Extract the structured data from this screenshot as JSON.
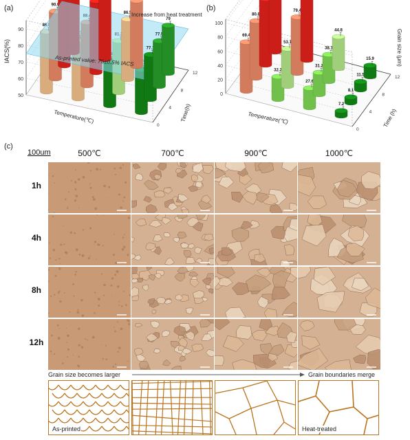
{
  "panel_a": {
    "label": "(a)",
    "ylabel": "IACS(%)",
    "xlabel": "Temperature(℃)",
    "zlabel": "Time(h)",
    "y_ticks": [
      "50",
      "60",
      "70",
      "80",
      "90"
    ],
    "x_ticks": [
      "1000",
      "900",
      "700",
      "500"
    ],
    "z_ticks": [
      "0",
      "4",
      "8",
      "12"
    ],
    "annotation_top": "Increase from heat treatment",
    "plane_label": "As-printed value: 75±0.5% IACS"
  },
  "panel_b": {
    "label": "(b)",
    "ylabel": "Grain size (μm)",
    "xlabel": "Temperature(℃)",
    "zlabel": "Time (h)",
    "y_ticks": [
      "0",
      "20",
      "40",
      "60",
      "80",
      "100"
    ],
    "x_ticks": [
      "1000",
      "900",
      "700",
      "500"
    ],
    "z_ticks": [
      "0",
      "4",
      "8",
      "12"
    ]
  },
  "chart_data": [
    {
      "type": "bar",
      "title": "",
      "xlabel": "Temperature(℃)",
      "ylabel": "IACS(%)",
      "zlabel": "Time(h)",
      "categories": [
        "1000",
        "900",
        "700",
        "500"
      ],
      "series": [
        {
          "name": "1h",
          "values": [
            86.5,
            85.7,
            77.2,
            76.1
          ]
        },
        {
          "name": "4h",
          "values": [
            90.9,
            88.4,
            81.3,
            77.1
          ]
        },
        {
          "name": "8h",
          "values": [
            95.6,
            93.5,
            86.5,
            77.5
          ]
        },
        {
          "name": "12h",
          "values": [
            94,
            95.7,
            89.8,
            79
          ]
        }
      ],
      "ylim": [
        50,
        95
      ],
      "reference_value": 75
    },
    {
      "type": "bar",
      "title": "",
      "xlabel": "Temperature(℃)",
      "ylabel": "Grain size (μm)",
      "zlabel": "Time (h)",
      "categories": [
        "1000",
        "900",
        "700",
        "500"
      ],
      "series": [
        {
          "name": "1h",
          "values": [
            69.4,
            32.2,
            27.6,
            7.2
          ]
        },
        {
          "name": "4h",
          "values": [
            80.8,
            53.1,
            31.2,
            8.1
          ]
        },
        {
          "name": "8h",
          "values": [
            93.4,
            79.4,
            38.1,
            11.5
          ]
        },
        {
          "name": "12h",
          "values": [
            101.5,
            99.7,
            44.8,
            15.9
          ]
        }
      ],
      "ylim": [
        0,
        105
      ]
    }
  ],
  "panel_c": {
    "label": "(c)",
    "scalebar": "100um",
    "columns": [
      "500℃",
      "700℃",
      "900℃",
      "1000℃"
    ],
    "rows": [
      "1h",
      "4h",
      "8h",
      "12h"
    ],
    "caption_left": "Grain size becomes larger",
    "caption_right": "Grain boundaries merge",
    "schematic_left": "As-printed",
    "schematic_right": "Heat-treated"
  },
  "colors": {
    "red": "#e8221c",
    "salmon": "#f08c6a",
    "peach": "#f7c48e",
    "light_green": "#b6ea8c",
    "green": "#29a02a",
    "dark_green": "#138a17",
    "plane": "#8fd8f0",
    "boundary": "#b9731d"
  }
}
